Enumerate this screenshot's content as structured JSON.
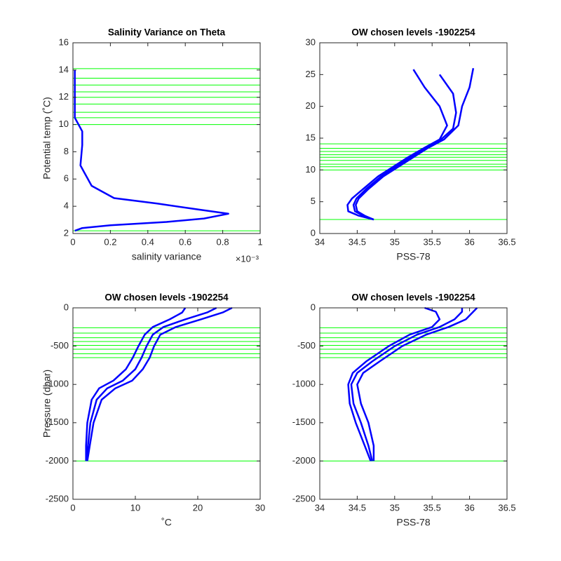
{
  "chart_data": [
    {
      "type": "line",
      "title": "Salinity Variance on Theta",
      "xlabel": "salinity variance",
      "ylabel": "Potential temp (˚C)",
      "x_exponent_label": "×10⁻³",
      "xlim": [
        0,
        1
      ],
      "xticks": [
        0,
        0.2,
        0.4,
        0.6,
        0.8,
        1
      ],
      "ylim": [
        2,
        16
      ],
      "yticks": [
        2,
        4,
        6,
        8,
        10,
        12,
        14,
        16
      ],
      "series": [
        {
          "color": "#0000ff",
          "x": [
            0.01,
            0.01,
            0.01,
            0.03,
            0.05,
            0.05,
            0.04,
            0.06,
            0.1,
            0.22,
            0.45,
            0.65,
            0.83,
            0.7,
            0.5,
            0.2,
            0.05,
            0.01
          ],
          "values": [
            14,
            12,
            10.5,
            10,
            9.5,
            8.5,
            7,
            6.5,
            5.5,
            4.6,
            4.2,
            3.8,
            3.45,
            3.1,
            2.85,
            2.6,
            2.4,
            2.2
          ]
        }
      ],
      "hlines": {
        "color": "#00ff00",
        "values": [
          14.1,
          13.4,
          12.9,
          12.4,
          12.0,
          11.5,
          10.9,
          10.5,
          10.0,
          2.2
        ]
      }
    },
    {
      "type": "line",
      "title": "OW chosen levels -1902254",
      "xlabel": "PSS-78",
      "xlim": [
        34,
        36.5
      ],
      "xticks": [
        34,
        34.5,
        35,
        35.5,
        36,
        36.5
      ],
      "ylim": [
        0,
        30
      ],
      "yticks": [
        0,
        5,
        10,
        15,
        20,
        25,
        30
      ],
      "series": [
        {
          "color": "#0000ff",
          "x": [
            34.72,
            34.52,
            34.38,
            34.37,
            34.43,
            34.58,
            34.78,
            34.98,
            35.18,
            35.4,
            35.6,
            35.7,
            35.6,
            35.4,
            35.25
          ],
          "values": [
            2.2,
            2.8,
            3.5,
            4.5,
            5.5,
            7,
            9,
            10.5,
            12,
            13.5,
            14.8,
            17,
            20,
            23,
            25.8
          ]
        },
        {
          "color": "#0000ff",
          "x": [
            34.72,
            34.58,
            34.47,
            34.45,
            34.49,
            34.62,
            34.82,
            35.02,
            35.22,
            35.42,
            35.62,
            35.78,
            35.82,
            35.78,
            35.6
          ],
          "values": [
            2.2,
            2.8,
            3.5,
            4.5,
            5.5,
            7,
            9,
            10.5,
            12,
            13.5,
            14.8,
            16.5,
            19,
            22,
            25
          ]
        },
        {
          "color": "#0000ff",
          "x": [
            34.72,
            34.6,
            34.5,
            34.48,
            34.52,
            34.65,
            34.85,
            35.05,
            35.25,
            35.45,
            35.66,
            35.85,
            35.9,
            36.0,
            36.05
          ],
          "values": [
            2.2,
            2.8,
            3.5,
            4.5,
            5.5,
            7,
            9,
            10.5,
            12,
            13.5,
            14.8,
            17,
            20,
            23,
            26
          ]
        }
      ],
      "hlines": {
        "color": "#00ff00",
        "values": [
          14.1,
          13.4,
          12.9,
          12.4,
          12.0,
          11.5,
          10.9,
          10.5,
          10.0,
          2.2
        ]
      }
    },
    {
      "type": "line",
      "title": "OW chosen levels -1902254",
      "xlabel": "˚C",
      "ylabel": "Pressure (dbar)",
      "xlim": [
        0,
        30
      ],
      "xticks": [
        0,
        10,
        20,
        30
      ],
      "ylim": [
        -2500,
        0
      ],
      "yticks": [
        -2500,
        -2000,
        -1500,
        -1000,
        -500,
        0
      ],
      "series": [
        {
          "color": "#0000ff",
          "x": [
            2.1,
            2.1,
            2.3,
            3.0,
            4.2,
            6.5,
            8.5,
            9.6,
            10.5,
            11.5,
            12.8,
            15.5,
            17.5,
            18
          ],
          "values": [
            -2000,
            -1800,
            -1500,
            -1200,
            -1050,
            -950,
            -800,
            -650,
            -500,
            -350,
            -250,
            -150,
            -60,
            0
          ]
        },
        {
          "color": "#0000ff",
          "x": [
            2.2,
            2.4,
            2.8,
            3.8,
            5.5,
            8.0,
            10.0,
            11.0,
            11.8,
            12.8,
            14.5,
            18,
            21.5,
            23
          ],
          "values": [
            -2000,
            -1800,
            -1500,
            -1200,
            -1050,
            -950,
            -800,
            -650,
            -500,
            -350,
            -250,
            -150,
            -60,
            0
          ]
        },
        {
          "color": "#0000ff",
          "x": [
            2.3,
            2.7,
            3.3,
            4.6,
            6.8,
            9.5,
            11.2,
            12.3,
            13.0,
            14.0,
            16.5,
            20.5,
            24,
            25.5
          ],
          "values": [
            -2000,
            -1800,
            -1500,
            -1200,
            -1050,
            -950,
            -800,
            -650,
            -500,
            -350,
            -250,
            -150,
            -60,
            0
          ]
        }
      ],
      "hlines": {
        "color": "#00ff00",
        "values": [
          -260,
          -330,
          -390,
          -440,
          -490,
          -540,
          -600,
          -650,
          -2000
        ]
      }
    },
    {
      "type": "line",
      "title": "OW chosen levels -1902254",
      "xlabel": "PSS-78",
      "xlim": [
        34,
        36.5
      ],
      "xticks": [
        34,
        34.5,
        35,
        35.5,
        36,
        36.5
      ],
      "ylim": [
        -2500,
        0
      ],
      "yticks": [
        -2500,
        -2000,
        -1500,
        -1000,
        -500,
        0
      ],
      "series": [
        {
          "color": "#0000ff",
          "x": [
            34.68,
            34.6,
            34.48,
            34.4,
            34.38,
            34.44,
            34.62,
            34.92,
            35.2,
            35.5,
            35.6,
            35.55,
            35.4
          ],
          "values": [
            -2000,
            -1800,
            -1500,
            -1250,
            -1000,
            -850,
            -700,
            -500,
            -350,
            -250,
            -150,
            -50,
            0
          ]
        },
        {
          "color": "#0000ff",
          "x": [
            34.7,
            34.65,
            34.55,
            34.45,
            34.42,
            34.5,
            34.7,
            35.0,
            35.3,
            35.6,
            35.8,
            35.9,
            35.9
          ],
          "values": [
            -2000,
            -1800,
            -1500,
            -1250,
            -1000,
            -850,
            -700,
            -500,
            -350,
            -250,
            -150,
            -50,
            0
          ]
        },
        {
          "color": "#0000ff",
          "x": [
            34.72,
            34.72,
            34.65,
            34.55,
            34.5,
            34.58,
            34.8,
            35.1,
            35.42,
            35.72,
            35.95,
            36.05,
            36.1
          ],
          "values": [
            -2000,
            -1800,
            -1500,
            -1250,
            -1000,
            -850,
            -700,
            -500,
            -350,
            -250,
            -150,
            -50,
            0
          ]
        }
      ],
      "hlines": {
        "color": "#00ff00",
        "values": [
          -260,
          -330,
          -390,
          -440,
          -490,
          -540,
          -600,
          -650,
          -2000
        ]
      }
    }
  ]
}
